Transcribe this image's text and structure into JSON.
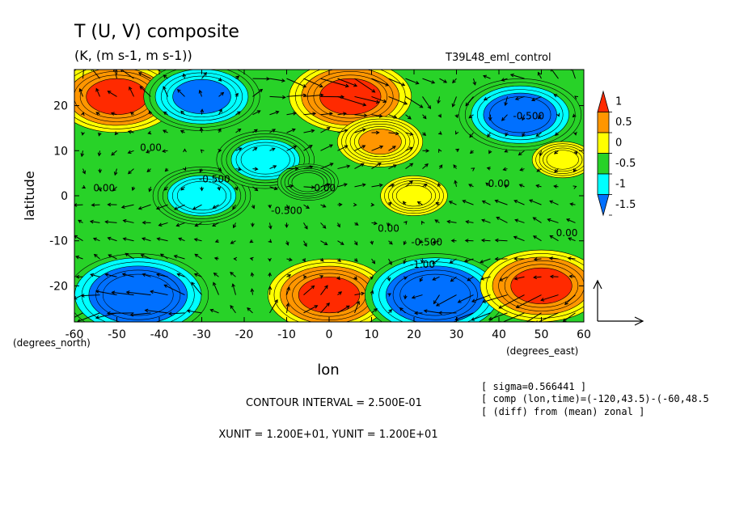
{
  "chart_data": {
    "type": "heatmap",
    "title": "T (U, V) composite",
    "subtitle": "(K, (m s-1, m s-1))",
    "run_label": "T39L48_eml_control",
    "xlabel": "lon",
    "ylabel": "latitude",
    "x_units": "(degrees_east)",
    "y_units": "(degrees_north)",
    "xlim": [
      -60,
      60
    ],
    "ylim": [
      -28,
      28
    ],
    "x_ticks": [
      -60,
      -50,
      -40,
      -30,
      -20,
      -10,
      0,
      10,
      20,
      30,
      40,
      50,
      60
    ],
    "y_ticks": [
      -20,
      -10,
      0,
      10,
      20
    ],
    "colorbar": {
      "labels": [
        "1",
        "0.5",
        "0",
        "-0.5",
        "-1",
        "-1.5"
      ],
      "bins": [
        {
          "color": "#ff2a00",
          "range": "> 1"
        },
        {
          "color": "#ff9600",
          "range": "0.5 – 1"
        },
        {
          "color": "#ffff00",
          "range": "0 – 0.5"
        },
        {
          "color": "#28d228",
          "range": "-0.5 – 0"
        },
        {
          "color": "#00ffff",
          "range": "-1 – -0.5"
        },
        {
          "color": "#0070ff",
          "range": "< -1"
        }
      ]
    },
    "field": [
      {
        "lon": -50,
        "lat": 22,
        "value": 1.2
      },
      {
        "lon": -45,
        "lat": -22,
        "value": -1.5
      },
      {
        "lon": -30,
        "lat": 22,
        "value": -1.1
      },
      {
        "lon": -30,
        "lat": 0,
        "value": -0.8
      },
      {
        "lon": -15,
        "lat": 8,
        "value": -0.8
      },
      {
        "lon": -5,
        "lat": 3,
        "value": -0.2
      },
      {
        "lon": 0,
        "lat": -22,
        "value": 1.2
      },
      {
        "lon": 5,
        "lat": 22,
        "value": 1.2
      },
      {
        "lon": 12,
        "lat": 12,
        "value": 0.6
      },
      {
        "lon": 25,
        "lat": -22,
        "value": -1.5
      },
      {
        "lon": 20,
        "lat": 0,
        "value": 0.3
      },
      {
        "lon": 45,
        "lat": 18,
        "value": -1.2
      },
      {
        "lon": 50,
        "lat": -20,
        "value": 1.2
      },
      {
        "lon": 55,
        "lat": 8,
        "value": 0.2
      }
    ],
    "contour_labels": [
      {
        "text": "0.00",
        "lon": -53,
        "lat": 1
      },
      {
        "text": "0.00",
        "lon": -42,
        "lat": 10
      },
      {
        "text": "-0.500",
        "lon": -27,
        "lat": 3
      },
      {
        "text": "-0.500",
        "lon": -10,
        "lat": -4
      },
      {
        "text": "0.00",
        "lon": -1,
        "lat": 1
      },
      {
        "text": "0.00",
        "lon": 14,
        "lat": -8
      },
      {
        "text": "-0.500",
        "lon": 23,
        "lat": -11
      },
      {
        "text": "-1.00",
        "lon": 22,
        "lat": -16
      },
      {
        "text": "0.00",
        "lon": 40,
        "lat": 2
      },
      {
        "text": "-0.500",
        "lon": 47,
        "lat": 17
      },
      {
        "text": "0.00",
        "lon": 56,
        "lat": -9
      }
    ],
    "reference_vector": {
      "u": 12,
      "v": 12
    }
  },
  "info": {
    "contour_interval": "CONTOUR INTERVAL = 2.500E-01",
    "units_line": "XUNIT = 1.200E+01, YUNIT = 1.200E+01",
    "sigma": "[ sigma=0.566441 ]",
    "comp": "[ comp (lon,time)=(-120,43.5)-(-60,48.5",
    "diff": "[ (diff) from (mean) zonal ]"
  }
}
